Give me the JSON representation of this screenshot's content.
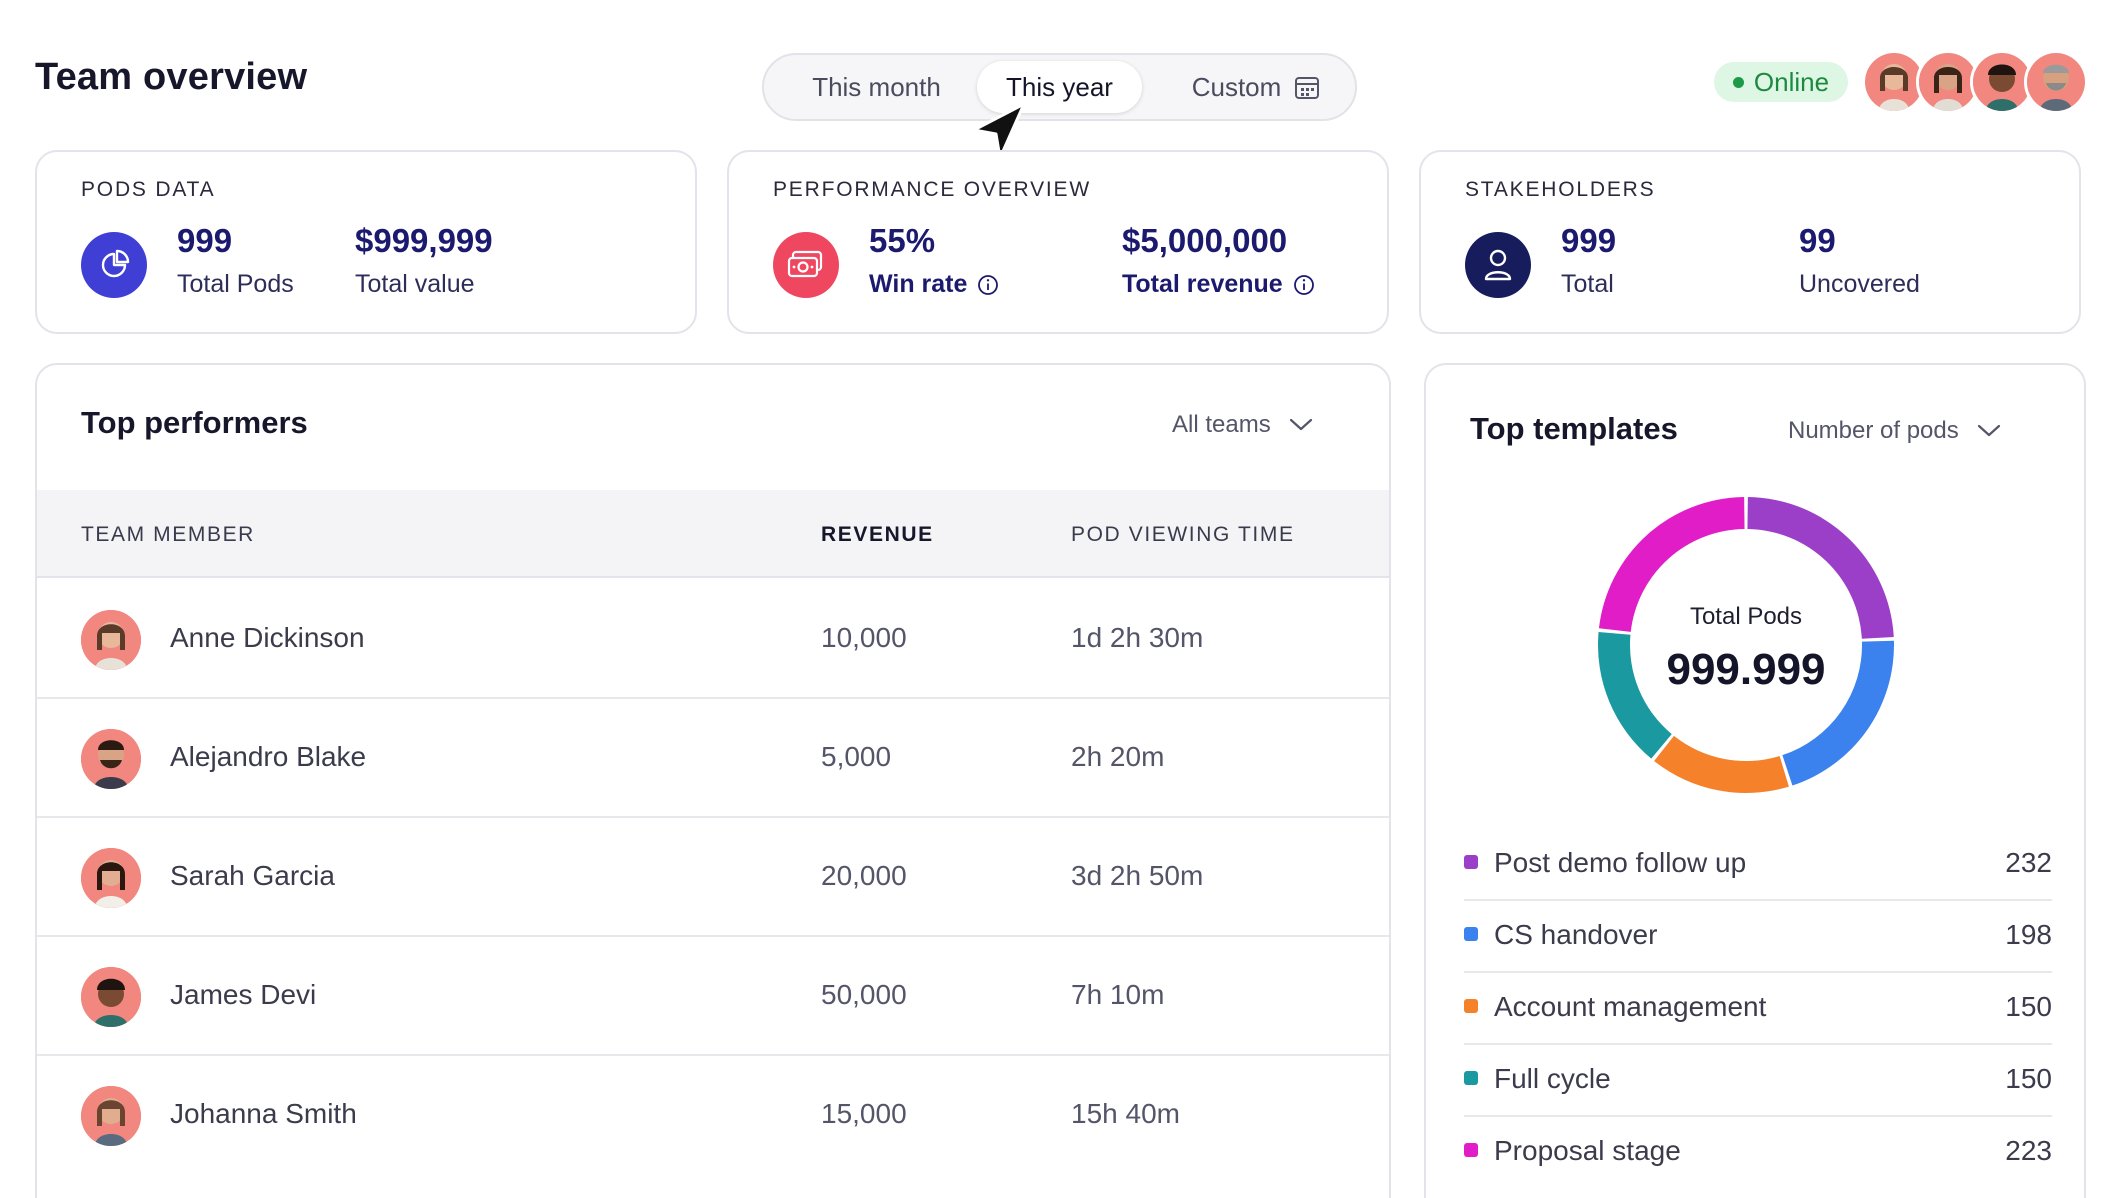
{
  "header": {
    "title": "Team overview",
    "period": {
      "options": [
        "This month",
        "This year",
        "Custom"
      ],
      "selected": "This year"
    },
    "status": "Online"
  },
  "pods_data": {
    "label": "PODS DATA",
    "total_pods_value": "999",
    "total_pods_label": "Total Pods",
    "total_value_value": "$999,999",
    "total_value_label": "Total value"
  },
  "performance": {
    "label": "PERFORMANCE OVERVIEW",
    "win_rate_value": "55%",
    "win_rate_label": "Win rate",
    "revenue_value": "$5,000,000",
    "revenue_label": "Total revenue"
  },
  "stakeholders": {
    "label": "STAKEHOLDERS",
    "total_value": "999",
    "total_label": "Total",
    "uncovered_value": "99",
    "uncovered_label": "Uncovered"
  },
  "performers": {
    "title": "Top performers",
    "filter": "All teams",
    "columns": [
      "TEAM MEMBER",
      "REVENUE",
      "POD VIEWING TIME"
    ],
    "rows": [
      {
        "name": "Anne Dickinson",
        "revenue": "10,000",
        "time": "1d 2h 30m"
      },
      {
        "name": "Alejandro Blake",
        "revenue": "5,000",
        "time": "2h 20m"
      },
      {
        "name": "Sarah Garcia",
        "revenue": "20,000",
        "time": "3d 2h 50m"
      },
      {
        "name": "James Devi",
        "revenue": "50,000",
        "time": "7h 10m"
      },
      {
        "name": "Johanna Smith",
        "revenue": "15,000",
        "time": "15h 40m"
      }
    ]
  },
  "templates": {
    "title": "Top templates",
    "metric": "Number of pods",
    "center_label": "Total Pods",
    "center_value": "999.999",
    "items": [
      {
        "name": "Post demo follow up",
        "value": "232",
        "color": "#9b3fc9"
      },
      {
        "name": "CS handover",
        "value": "198",
        "color": "#3b82ee"
      },
      {
        "name": "Account management",
        "value": "150",
        "color": "#f5822a"
      },
      {
        "name": "Full cycle",
        "value": "150",
        "color": "#1a9aa0"
      },
      {
        "name": "Proposal stage",
        "value": "223",
        "color": "#e11dc8"
      }
    ]
  },
  "colors": {
    "accent_indigo": "#3f3fd6",
    "accent_pink": "#ef4760",
    "navy": "#171d5c",
    "online_green": "#1d9a46"
  }
}
